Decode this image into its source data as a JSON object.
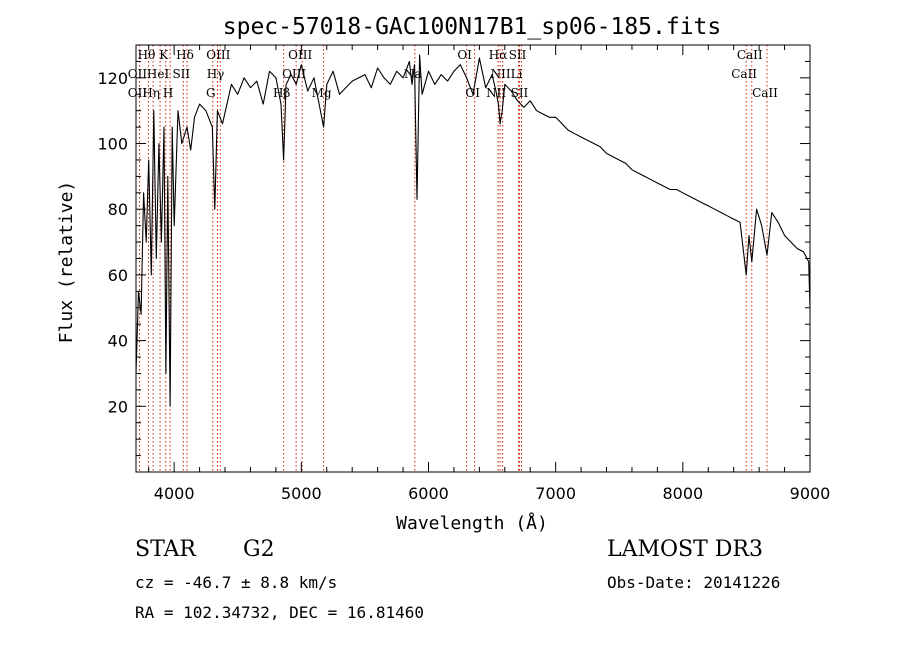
{
  "chart_data": {
    "type": "line",
    "title": "spec-57018-GAC100N17B1_sp06-185.fits",
    "xlabel": "Wavelength (Å)",
    "ylabel": "Flux (relative)",
    "xlim": [
      3700,
      9000
    ],
    "ylim": [
      0,
      130
    ],
    "xticks": [
      4000,
      5000,
      6000,
      7000,
      8000,
      9000
    ],
    "yticks": [
      20,
      40,
      60,
      80,
      100,
      120
    ],
    "grid": false,
    "series": [
      {
        "color": "#000000",
        "x": [
          3700,
          3720,
          3740,
          3760,
          3780,
          3800,
          3820,
          3840,
          3860,
          3880,
          3900,
          3920,
          3935,
          3950,
          3968,
          3985,
          4000,
          4030,
          4060,
          4101,
          4130,
          4160,
          4200,
          4250,
          4300,
          4320,
          4340,
          4380,
          4450,
          4500,
          4550,
          4600,
          4650,
          4700,
          4750,
          4800,
          4840,
          4861,
          4880,
          4920,
          4960,
          5000,
          5050,
          5100,
          5150,
          5175,
          5200,
          5250,
          5300,
          5400,
          5500,
          5550,
          5600,
          5650,
          5700,
          5750,
          5800,
          5850,
          5870,
          5890,
          5910,
          5930,
          5950,
          6000,
          6050,
          6100,
          6150,
          6200,
          6250,
          6300,
          6350,
          6400,
          6450,
          6500,
          6530,
          6550,
          6563,
          6580,
          6600,
          6650,
          6700,
          6750,
          6800,
          6850,
          6900,
          6950,
          7000,
          7050,
          7100,
          7150,
          7200,
          7250,
          7300,
          7350,
          7400,
          7450,
          7500,
          7550,
          7600,
          7650,
          7700,
          7750,
          7800,
          7850,
          7900,
          7950,
          8000,
          8050,
          8100,
          8150,
          8200,
          8250,
          8300,
          8350,
          8400,
          8450,
          8498,
          8520,
          8542,
          8580,
          8620,
          8662,
          8700,
          8750,
          8800,
          8850,
          8900,
          8950,
          8990,
          9000
        ],
        "y": [
          30,
          55,
          48,
          85,
          70,
          95,
          60,
          110,
          65,
          100,
          70,
          105,
          30,
          90,
          20,
          105,
          75,
          110,
          100,
          105,
          98,
          108,
          112,
          110,
          105,
          80,
          110,
          106,
          118,
          115,
          120,
          117,
          119,
          112,
          122,
          120,
          112,
          95,
          118,
          121,
          118,
          124,
          116,
          120,
          110,
          105,
          118,
          122,
          115,
          119,
          121,
          117,
          123,
          120,
          118,
          122,
          120,
          125,
          118,
          124,
          83,
          127,
          115,
          122,
          118,
          121,
          119,
          122,
          124,
          120,
          115,
          126,
          117,
          121,
          116,
          112,
          106,
          110,
          118,
          116,
          113,
          111,
          113,
          110,
          109,
          108,
          108,
          106,
          104,
          103,
          102,
          101,
          100,
          99,
          97,
          96,
          95,
          94,
          92,
          91,
          90,
          89,
          88,
          87,
          86,
          86,
          85,
          84,
          83,
          82,
          81,
          80,
          79,
          78,
          77,
          76,
          60,
          72,
          64,
          80,
          75,
          66,
          79,
          76,
          72,
          70,
          68,
          67,
          64,
          50
        ]
      }
    ],
    "line_annotations": [
      {
        "label": "Hθ",
        "x": 3798,
        "row": 0
      },
      {
        "label": "K",
        "x": 3934,
        "row": 0
      },
      {
        "label": "Hδ",
        "x": 4101,
        "row": 0
      },
      {
        "label": "OII",
        "x": 3727,
        "row": 1
      },
      {
        "label": "HeI",
        "x": 3889,
        "row": 1
      },
      {
        "label": "SII",
        "x": 4072,
        "row": 1
      },
      {
        "label": "OII",
        "x": 3727,
        "row": 2
      },
      {
        "label": "Hη",
        "x": 3835,
        "row": 2
      },
      {
        "label": "H",
        "x": 3968,
        "row": 2
      },
      {
        "label": "OIII",
        "x": 4363,
        "row": 0
      },
      {
        "label": "Hγ",
        "x": 4341,
        "row": 1
      },
      {
        "label": "G",
        "x": 4304,
        "row": 2
      },
      {
        "label": "OIII",
        "x": 5007,
        "row": 0
      },
      {
        "label": "OIII",
        "x": 4959,
        "row": 1
      },
      {
        "label": "Hβ",
        "x": 4861,
        "row": 2
      },
      {
        "label": "Mg",
        "x": 5175,
        "row": 2
      },
      {
        "label": "Na",
        "x": 5893,
        "row": 1
      },
      {
        "label": "OI",
        "x": 6300,
        "row": 0
      },
      {
        "label": "OI",
        "x": 6363,
        "row": 2
      },
      {
        "label": "Hα",
        "x": 6563,
        "row": 0
      },
      {
        "label": "SII",
        "x": 6716,
        "row": 0
      },
      {
        "label": "NII",
        "x": 6583,
        "row": 1
      },
      {
        "label": "Li",
        "x": 6708,
        "row": 1
      },
      {
        "label": "NII",
        "x": 6548,
        "row": 2
      },
      {
        "label": "SII",
        "x": 6731,
        "row": 2
      },
      {
        "label": "CaII",
        "x": 8542,
        "row": 0
      },
      {
        "label": "CaII",
        "x": 8498,
        "row": 1
      },
      {
        "label": "CaII",
        "x": 8662,
        "row": 2
      }
    ],
    "line_color": "#cc2200"
  },
  "info": {
    "class": "STAR",
    "subclass": "G2",
    "survey": "LAMOST DR3",
    "cz": "cz = -46.7 ± 8.8 km/s",
    "obs_date": "Obs-Date: 20141226",
    "coords": "RA = 102.34732, DEC =  16.81460"
  }
}
